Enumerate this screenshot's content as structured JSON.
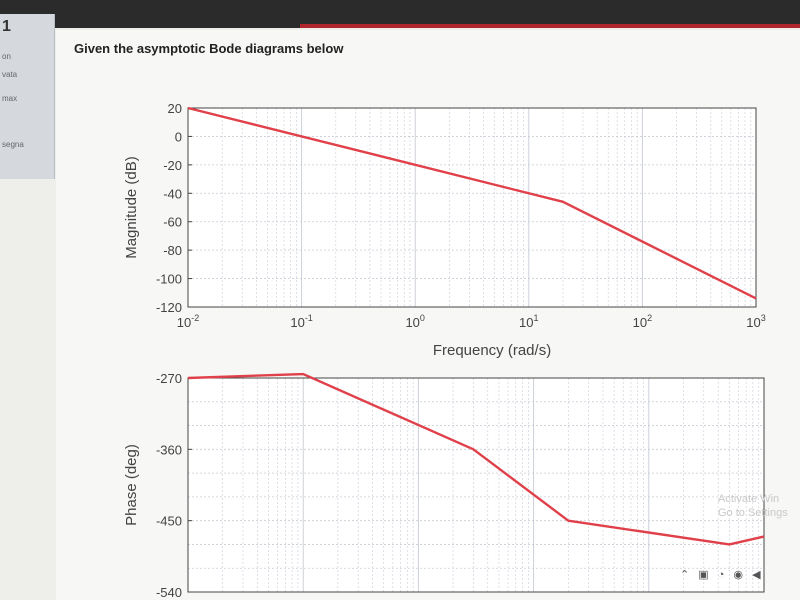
{
  "sidebar": {
    "question_number": "1",
    "items": [
      "on",
      "vata",
      "max",
      "segna"
    ]
  },
  "question_text": "Given the asymptotic Bode diagrams below",
  "magnitude_plot": {
    "ylabel": "Magnitude (dB)",
    "xlabel": "Frequency (rad/s)",
    "yticks": [
      "20",
      "0",
      "-20",
      "-40",
      "-60",
      "-80",
      "-100",
      "-120"
    ],
    "xticks": [
      {
        "base": "10",
        "exp": "-2"
      },
      {
        "base": "10",
        "exp": "-1"
      },
      {
        "base": "10",
        "exp": "0"
      },
      {
        "base": "10",
        "exp": "1"
      },
      {
        "base": "10",
        "exp": "2"
      },
      {
        "base": "10",
        "exp": "3"
      }
    ]
  },
  "phase_plot": {
    "ylabel": "Phase (deg)",
    "yticks": [
      "-270",
      "-360",
      "-450",
      "-540"
    ]
  },
  "watermark": {
    "line1": "Activate Win",
    "line2": "Go to Settings"
  },
  "colors": {
    "curve": "#e0404a",
    "grid": "#c8ccd6",
    "axis": "#444444"
  },
  "chart_data": [
    {
      "type": "line",
      "xscale": "log",
      "xlim": [
        0.01,
        1000
      ],
      "ylim": [
        -120,
        20
      ],
      "grid": true,
      "xlabel": "Frequency (rad/s)",
      "ylabel": "Magnitude (dB)",
      "series": [
        {
          "x": [
            0.01,
            20,
            1000
          ],
          "y": [
            20,
            -46,
            -114
          ]
        }
      ]
    },
    {
      "type": "line",
      "xscale": "log",
      "xlim": [
        0.01,
        1000
      ],
      "ylim": [
        -540,
        -270
      ],
      "grid": true,
      "xlabel": "",
      "ylabel": "Phase (deg)",
      "series": [
        {
          "x": [
            0.01,
            0.1,
            3,
            20,
            500,
            1000
          ],
          "y": [
            -270,
            -265,
            -360,
            -450,
            -480,
            -470
          ]
        }
      ]
    }
  ]
}
